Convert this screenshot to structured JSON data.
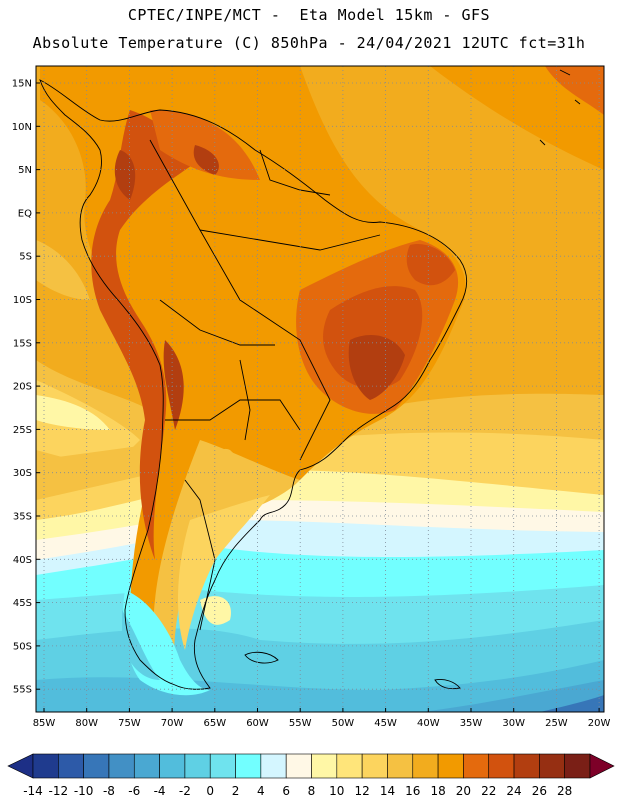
{
  "header": {
    "line1": "CPTEC/INPE/MCT -  Eta Model 15km - GFS",
    "line2": "Absolute Temperature (C) 850hPa - 24/04/2021 12UTC fct=31h"
  },
  "map": {
    "lon_labels": [
      "85W",
      "80W",
      "75W",
      "70W",
      "65W",
      "60W",
      "55W",
      "50W",
      "45W",
      "40W",
      "35W",
      "30W",
      "25W",
      "20W"
    ],
    "lat_labels": [
      "15N",
      "10N",
      "5N",
      "EQ",
      "5S",
      "10S",
      "15S",
      "20S",
      "25S",
      "30S",
      "35S",
      "40S",
      "45S",
      "50S",
      "55S"
    ]
  },
  "colorbar": {
    "labels": [
      "-14",
      "-12",
      "-10",
      "-8",
      "-6",
      "-4",
      "-2",
      "0",
      "2",
      "4",
      "6",
      "8",
      "10",
      "12",
      "14",
      "16",
      "18",
      "20",
      "22",
      "24",
      "26",
      "28"
    ],
    "colors": [
      "#1f3b8e",
      "#2d5aa8",
      "#3776b8",
      "#4290c5",
      "#4aa8d2",
      "#52bddc",
      "#5fd0e4",
      "#6fe3ee",
      "#72ffff",
      "#d4f6ff",
      "#fff8e6",
      "#fff7a6",
      "#ffe57a",
      "#fcd45e",
      "#f5c142",
      "#f2ac1e",
      "#f29a00",
      "#e46a0d",
      "#d2520e",
      "#b23e10",
      "#962f12",
      "#7a1f16"
    ],
    "under_color": "#1d2f86",
    "over_color": "#7d0028"
  }
}
